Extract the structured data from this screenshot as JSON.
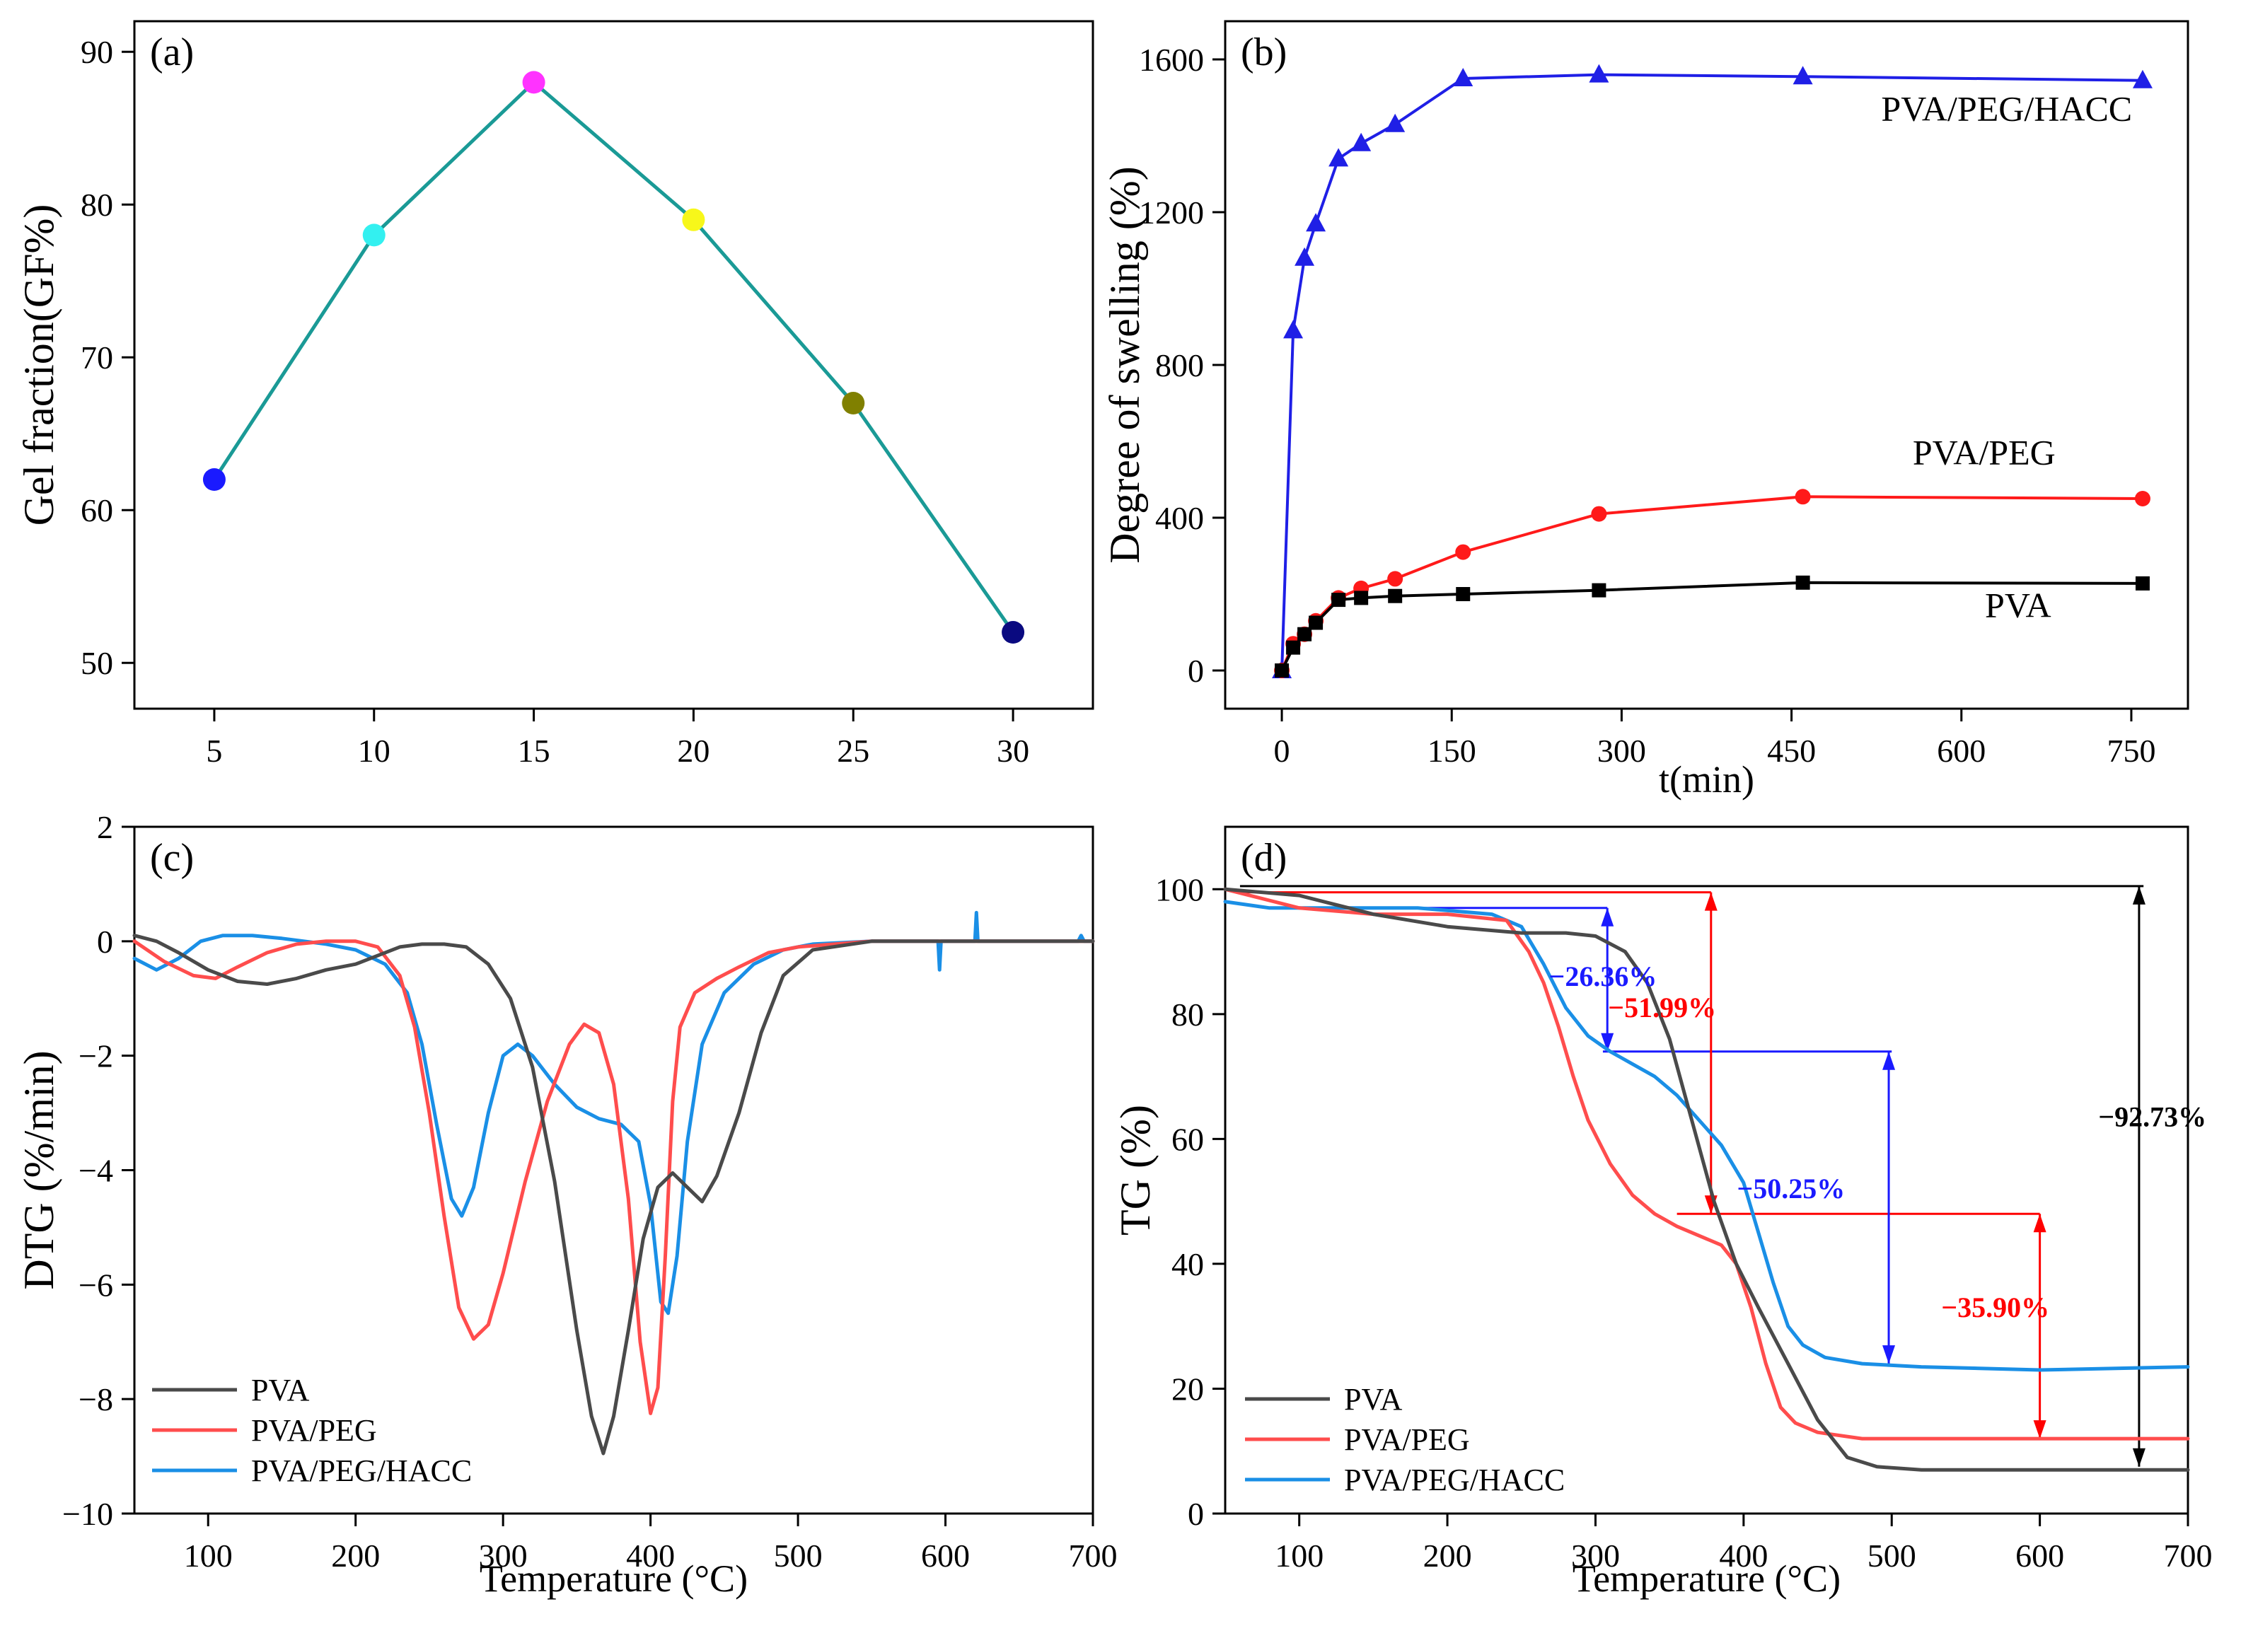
{
  "colors": {
    "teal": "#1a9a96",
    "black": "#000000",
    "red": "#ff1a1a",
    "blue": "#1f1fe6",
    "gray_line": "#4a4a4a",
    "red_line": "#ff4d4d",
    "blue_line": "#1a8fe6",
    "ann_blue": "#1a1aff",
    "ann_red": "#ff0000"
  },
  "chart_data": [
    {
      "id": "a",
      "type": "line",
      "panel_label": "(a)",
      "xlabel": "",
      "ylabel": "Gel fraction(GF%)",
      "xlim": [
        2.5,
        32.5
      ],
      "ylim": [
        47,
        92
      ],
      "xticks": [
        5,
        10,
        15,
        20,
        25,
        30
      ],
      "yticks": [
        50,
        60,
        70,
        80,
        90
      ],
      "line_color": "#1a9a96",
      "x": [
        5,
        10,
        15,
        20,
        25,
        30
      ],
      "y": [
        62,
        78,
        88,
        79,
        67,
        52
      ],
      "point_colors": [
        "#1a1aff",
        "#33f0f0",
        "#ff33ff",
        "#f7f71a",
        "#808000",
        "#0a0a80"
      ]
    },
    {
      "id": "b",
      "type": "line",
      "panel_label": "(b)",
      "xlabel": "t(min)",
      "ylabel": "Degree of swelling (%)",
      "xlim": [
        -50,
        800
      ],
      "ylim": [
        -100,
        1700
      ],
      "xticks": [
        0,
        150,
        300,
        450,
        600,
        750
      ],
      "yticks": [
        0,
        400,
        800,
        1200,
        1600
      ],
      "series": [
        {
          "name": "PVA/PEG/HACC",
          "color": "#1f1fe6",
          "marker": "triangle",
          "x": [
            0,
            10,
            20,
            30,
            50,
            70,
            100,
            160,
            280,
            460,
            760
          ],
          "y": [
            0,
            890,
            1080,
            1170,
            1340,
            1380,
            1430,
            1550,
            1560,
            1555,
            1545
          ]
        },
        {
          "name": "PVA/PEG",
          "color": "#ff1a1a",
          "marker": "circle",
          "x": [
            0,
            10,
            20,
            30,
            50,
            70,
            100,
            160,
            280,
            460,
            760
          ],
          "y": [
            0,
            70,
            95,
            130,
            190,
            215,
            240,
            310,
            410,
            455,
            450
          ]
        },
        {
          "name": "PVA",
          "color": "#000000",
          "marker": "square",
          "x": [
            0,
            10,
            20,
            30,
            50,
            70,
            100,
            160,
            280,
            460,
            760
          ],
          "y": [
            0,
            60,
            95,
            125,
            185,
            190,
            195,
            200,
            210,
            230,
            228
          ]
        }
      ],
      "annotations": [
        {
          "text": "PVA/PEG/HACC",
          "x": 640,
          "y": 1440
        },
        {
          "text": "PVA/PEG",
          "x": 620,
          "y": 540
        },
        {
          "text": "PVA",
          "x": 650,
          "y": 140
        }
      ]
    },
    {
      "id": "c",
      "type": "line",
      "panel_label": "(c)",
      "xlabel": "Temperature (°C)",
      "ylabel": "DTG (%/min)",
      "xlim": [
        50,
        700
      ],
      "ylim": [
        -10,
        2
      ],
      "xticks": [
        100,
        200,
        300,
        400,
        500,
        600,
        700
      ],
      "yticks": [
        2,
        0,
        -2,
        -4,
        -6,
        -8,
        -10
      ],
      "ytick_labels": [
        "2",
        "0",
        "−2",
        "−4",
        "−6",
        "−8",
        "−10"
      ],
      "legend": [
        "PVA",
        "PVA/PEG",
        "PVA/PEG/HACC"
      ],
      "series": [
        {
          "name": "PVA",
          "color": "#4a4a4a",
          "x": [
            50,
            65,
            80,
            100,
            120,
            140,
            160,
            180,
            200,
            215,
            230,
            245,
            260,
            275,
            290,
            305,
            320,
            335,
            350,
            360,
            368,
            375,
            385,
            395,
            405,
            415,
            425,
            435,
            445,
            460,
            475,
            490,
            510,
            550,
            600,
            650,
            700
          ],
          "y": [
            0.1,
            0.0,
            -0.2,
            -0.5,
            -0.7,
            -0.75,
            -0.65,
            -0.5,
            -0.4,
            -0.25,
            -0.1,
            -0.05,
            -0.05,
            -0.1,
            -0.4,
            -1.0,
            -2.2,
            -4.2,
            -6.8,
            -8.3,
            -8.95,
            -8.3,
            -6.8,
            -5.2,
            -4.3,
            -4.05,
            -4.3,
            -4.55,
            -4.1,
            -3.0,
            -1.6,
            -0.6,
            -0.15,
            0.0,
            0.0,
            0.0,
            0.0
          ]
        },
        {
          "name": "PVA/PEG",
          "color": "#ff4d4d",
          "x": [
            50,
            70,
            90,
            105,
            120,
            140,
            160,
            180,
            200,
            215,
            230,
            240,
            250,
            260,
            270,
            280,
            290,
            300,
            315,
            330,
            345,
            355,
            365,
            375,
            385,
            393,
            400,
            405,
            410,
            415,
            420,
            430,
            445,
            460,
            480,
            500,
            550,
            600,
            650,
            700
          ],
          "y": [
            0.0,
            -0.35,
            -0.6,
            -0.65,
            -0.45,
            -0.2,
            -0.05,
            0.0,
            0.0,
            -0.1,
            -0.6,
            -1.5,
            -3.0,
            -4.8,
            -6.4,
            -6.95,
            -6.7,
            -5.8,
            -4.2,
            -2.8,
            -1.8,
            -1.45,
            -1.6,
            -2.5,
            -4.5,
            -7.0,
            -8.25,
            -7.8,
            -5.5,
            -2.8,
            -1.5,
            -0.9,
            -0.65,
            -0.45,
            -0.2,
            -0.1,
            0.0,
            0.0,
            0.0,
            0.0
          ]
        },
        {
          "name": "PVA/PEG/HACC",
          "color": "#1a8fe6",
          "x": [
            50,
            65,
            80,
            95,
            110,
            130,
            150,
            180,
            200,
            220,
            235,
            245,
            255,
            265,
            272,
            280,
            290,
            300,
            310,
            320,
            335,
            350,
            365,
            380,
            392,
            400,
            407,
            412,
            418,
            425,
            435,
            450,
            470,
            490,
            510,
            550,
            595,
            596,
            597,
            620,
            621,
            622,
            650,
            690,
            692,
            694,
            700
          ],
          "y": [
            -0.3,
            -0.5,
            -0.3,
            0.0,
            0.1,
            0.1,
            0.05,
            -0.05,
            -0.15,
            -0.4,
            -0.9,
            -1.8,
            -3.2,
            -4.5,
            -4.8,
            -4.3,
            -3.0,
            -2.0,
            -1.8,
            -2.0,
            -2.5,
            -2.9,
            -3.1,
            -3.2,
            -3.5,
            -4.6,
            -6.3,
            -6.5,
            -5.5,
            -3.5,
            -1.8,
            -0.9,
            -0.4,
            -0.15,
            -0.05,
            0.0,
            0.0,
            -0.5,
            0.0,
            0.0,
            0.5,
            0.0,
            0.0,
            0.0,
            0.1,
            0.0,
            0.0
          ]
        }
      ]
    },
    {
      "id": "d",
      "type": "line",
      "panel_label": "(d)",
      "xlabel": "Temperature (°C)",
      "ylabel": "TG (%)",
      "xlim": [
        50,
        700
      ],
      "ylim": [
        0,
        110
      ],
      "xticks": [
        100,
        200,
        300,
        400,
        500,
        600,
        700
      ],
      "yticks": [
        0,
        20,
        40,
        60,
        80,
        100
      ],
      "legend": [
        "PVA",
        "PVA/PEG",
        "PVA/PEG/HACC"
      ],
      "series": [
        {
          "name": "PVA",
          "color": "#4a4a4a",
          "x": [
            50,
            100,
            150,
            200,
            250,
            280,
            300,
            320,
            335,
            350,
            365,
            380,
            395,
            410,
            430,
            450,
            470,
            490,
            520,
            600,
            700
          ],
          "y": [
            100,
            99,
            96,
            94,
            93,
            93,
            92.5,
            90,
            85,
            76,
            63,
            50,
            40,
            33,
            24,
            15,
            9,
            7.5,
            7,
            7,
            7
          ]
        },
        {
          "name": "PVA/PEG",
          "color": "#ff4d4d",
          "x": [
            50,
            100,
            150,
            200,
            240,
            255,
            265,
            275,
            285,
            295,
            310,
            325,
            340,
            355,
            370,
            385,
            395,
            405,
            415,
            425,
            435,
            450,
            480,
            550,
            700
          ],
          "y": [
            100,
            97,
            96,
            96,
            95,
            90,
            85,
            78,
            70,
            63,
            56,
            51,
            48,
            46,
            44.5,
            43,
            40,
            33,
            24,
            17,
            14.5,
            13,
            12,
            12,
            12
          ]
        },
        {
          "name": "PVA/PEG/HACC",
          "color": "#1a8fe6",
          "x": [
            50,
            80,
            120,
            180,
            230,
            250,
            265,
            280,
            295,
            310,
            325,
            340,
            355,
            370,
            385,
            400,
            410,
            420,
            430,
            440,
            455,
            480,
            520,
            600,
            700
          ],
          "y": [
            98,
            97,
            97,
            97,
            96,
            94,
            88,
            81,
            76.5,
            74,
            72,
            70,
            67,
            63,
            59,
            53,
            45,
            37,
            30,
            27,
            25,
            24,
            23.5,
            23,
            23.5
          ]
        }
      ],
      "annotations": [
        {
          "text": "−26.36%",
          "color": "#1a1aff",
          "x": 305,
          "y": 84.5
        },
        {
          "text": "−51.99%",
          "color": "#ff0000",
          "x": 345,
          "y": 79.5
        },
        {
          "text": "−50.25%",
          "color": "#1a1aff",
          "x": 432,
          "y": 50.5
        },
        {
          "text": "−35.90%",
          "color": "#ff0000",
          "x": 570,
          "y": 31.5
        },
        {
          "text": "−92.73%",
          "color": "#000000",
          "x": 676,
          "y": 62
        }
      ]
    }
  ]
}
